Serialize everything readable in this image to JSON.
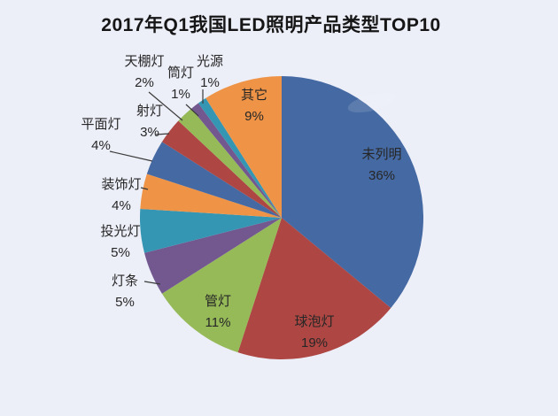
{
  "title": "2017年Q1我国LED照明产品类型TOP10",
  "background_color": "#eceef8",
  "chart_data": {
    "type": "pie",
    "title": "2017年Q1我国LED照明产品类型TOP10",
    "unit": "%",
    "order": "clockwise-from-12-oclock",
    "legend": "none",
    "total": 100,
    "palette": {
      "blue": "#4569a2",
      "red": "#ae4743",
      "green": "#96ba58",
      "purple": "#72588f",
      "teal": "#3596b4",
      "orange": "#ef9446"
    },
    "slices": [
      {
        "label": "未列明",
        "value": 36,
        "pct_label": "36%",
        "color": "#4569a2",
        "label_placement": "inside"
      },
      {
        "label": "球泡灯",
        "value": 19,
        "pct_label": "19%",
        "color": "#ae4743",
        "label_placement": "inside"
      },
      {
        "label": "管灯",
        "value": 11,
        "pct_label": "11%",
        "color": "#96ba58",
        "label_placement": "inside"
      },
      {
        "label": "灯条",
        "value": 5,
        "pct_label": "5%",
        "color": "#72588f",
        "label_placement": "outside"
      },
      {
        "label": "投光灯",
        "value": 5,
        "pct_label": "5%",
        "color": "#3596b4",
        "label_placement": "outside"
      },
      {
        "label": "装饰灯",
        "value": 4,
        "pct_label": "4%",
        "color": "#ef9446",
        "label_placement": "outside"
      },
      {
        "label": "平面灯",
        "value": 4,
        "pct_label": "4%",
        "color": "#4569a2",
        "label_placement": "outside"
      },
      {
        "label": "射灯",
        "value": 3,
        "pct_label": "3%",
        "color": "#ae4743",
        "label_placement": "outside"
      },
      {
        "label": "天棚灯",
        "value": 2,
        "pct_label": "2%",
        "color": "#96ba58",
        "label_placement": "outside"
      },
      {
        "label": "筒灯",
        "value": 1,
        "pct_label": "1%",
        "color": "#72588f",
        "label_placement": "outside"
      },
      {
        "label": "光源",
        "value": 1,
        "pct_label": "1%",
        "color": "#3596b4",
        "label_placement": "outside"
      },
      {
        "label": "其它",
        "value": 9,
        "pct_label": "9%",
        "color": "#ef9446",
        "label_placement": "inside"
      }
    ]
  }
}
